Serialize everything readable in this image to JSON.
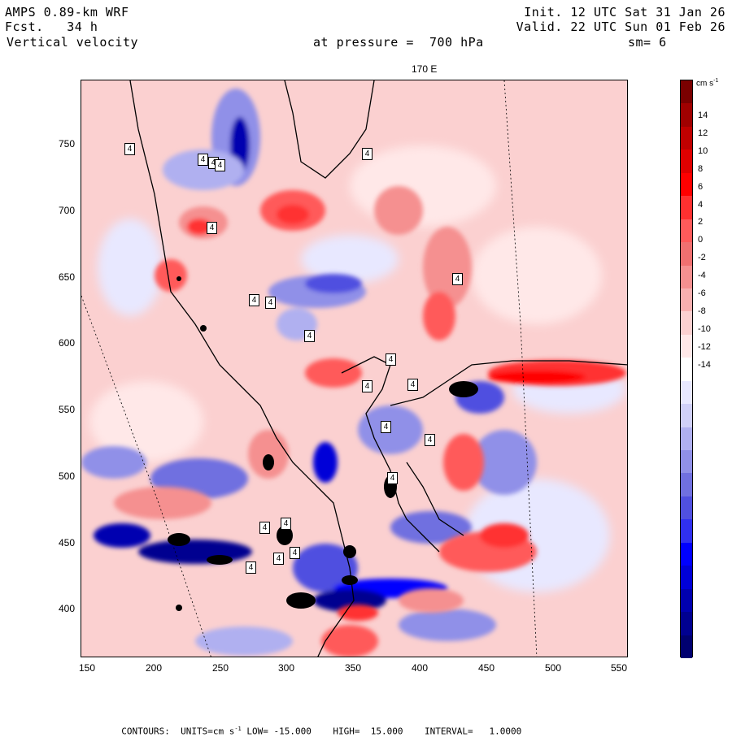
{
  "header": {
    "line1_left": "AMPS 0.89-km WRF",
    "line2_left": "Fcst.   34 h",
    "line3_left": "Vertical velocity",
    "line1_right": "Init. 12 UTC Sat 31 Jan 26",
    "line2_right": "Valid. 22 UTC Sun 01 Feb 26",
    "pressure": "at pressure =  700 hPa",
    "smoothing": "sm= 6",
    "meridian_label": "170 E"
  },
  "axes": {
    "x_ticks": [
      "150",
      "200",
      "250",
      "300",
      "350",
      "400",
      "450",
      "500",
      "550"
    ],
    "y_ticks": [
      "750",
      "700",
      "650",
      "600",
      "550",
      "500",
      "450",
      "400"
    ]
  },
  "colorbar": {
    "units_label": "cm s",
    "units_exp": "-1",
    "labels": [
      "14",
      "12",
      "10",
      "8",
      "6",
      "4",
      "2",
      "0",
      "-2",
      "-4",
      "-6",
      "-8",
      "-10",
      "-12",
      "-14"
    ],
    "colors_top_to_bottom": [
      "#7a0000",
      "#a00000",
      "#c00000",
      "#e00000",
      "#ff0000",
      "#ff3030",
      "#ff5a5a",
      "#f07070",
      "#f59090",
      "#f8b0b0",
      "#fbd0d0",
      "#ffe8e8",
      "#ffffff",
      "#e8e8ff",
      "#d0d0f8",
      "#b0b0f0",
      "#9090e8",
      "#7070e0",
      "#5050e0",
      "#3030f0",
      "#0000ff",
      "#0000d8",
      "#0000b0",
      "#000090",
      "#000070"
    ]
  },
  "contour_labels": [
    "4",
    "4",
    "4",
    "4",
    "4",
    "4",
    "4",
    "4",
    "4",
    "4",
    "4",
    "4",
    "4",
    "4",
    "4",
    "4",
    "4",
    "4",
    "4",
    "4",
    "4"
  ],
  "footer": {
    "label": "CONTOURS:",
    "units_text": "UNITS=cm s",
    "units_exp": "-1",
    "low": "LOW= -15.000",
    "high": "HIGH=  15.000",
    "interval": "INTERVAL=   1.0000"
  }
}
